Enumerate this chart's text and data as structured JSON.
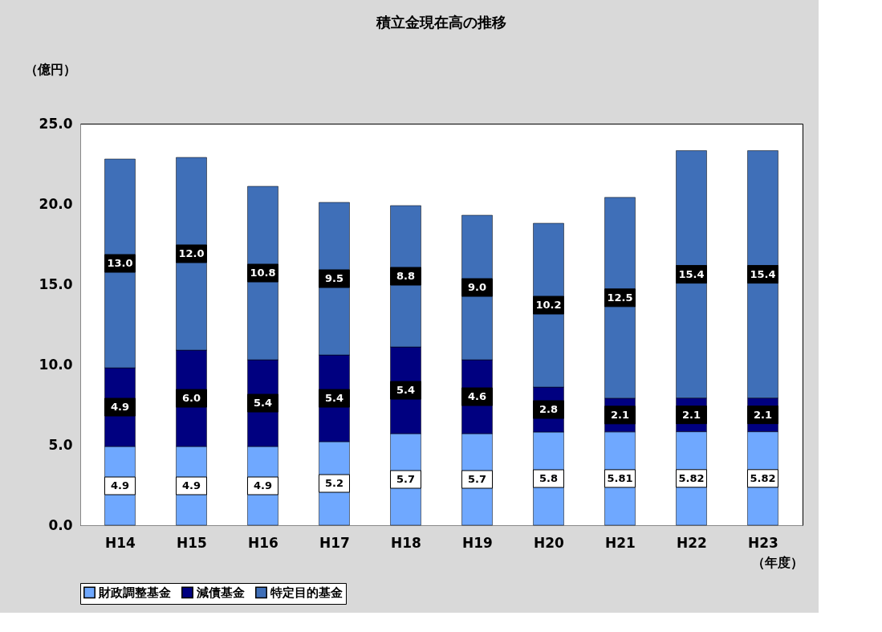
{
  "chart_data": {
    "type": "bar",
    "title": "積立金現在高の推移",
    "ylabel": "（億円）",
    "xlabel": "（年度）",
    "categories": [
      "H14",
      "H15",
      "H16",
      "H17",
      "H18",
      "H19",
      "H20",
      "H21",
      "H22",
      "H23"
    ],
    "stacked": true,
    "ylim": [
      0,
      25
    ],
    "yticks": [
      {
        "value": 0,
        "label": "0.0"
      },
      {
        "value": 5,
        "label": "5.0"
      },
      {
        "value": 10,
        "label": "10.0"
      },
      {
        "value": 15,
        "label": "15.0"
      },
      {
        "value": 20,
        "label": "20.0"
      },
      {
        "value": 25,
        "label": "25.0"
      }
    ],
    "grid": false,
    "legend": "bottom",
    "series": [
      {
        "name": "財政調整基金",
        "color": "#6fa8ff",
        "values": [
          4.9,
          4.9,
          4.9,
          5.2,
          5.7,
          5.7,
          5.8,
          5.81,
          5.82,
          5.82
        ],
        "value_labels": [
          "4.9",
          "4.9",
          "4.9",
          "5.2",
          "5.7",
          "5.7",
          "5.8",
          "5.81",
          "5.82",
          "5.82"
        ]
      },
      {
        "name": "減債基金",
        "color": "#000080",
        "values": [
          4.9,
          6.0,
          5.4,
          5.4,
          5.4,
          4.6,
          2.8,
          2.1,
          2.1,
          2.1
        ],
        "value_labels": [
          "4.9",
          "6.0",
          "5.4",
          "5.4",
          "5.4",
          "4.6",
          "2.8",
          "2.1",
          "2.1",
          "2.1"
        ]
      },
      {
        "name": "特定目的基金",
        "color": "#3f6fb8",
        "values": [
          13.0,
          12.0,
          10.8,
          9.5,
          8.8,
          9.0,
          10.2,
          12.5,
          15.4,
          15.4
        ],
        "value_labels": [
          "13.0",
          "12.0",
          "10.8",
          "9.5",
          "8.8",
          "9.0",
          "10.2",
          "12.5",
          "15.4",
          "15.4"
        ]
      }
    ]
  }
}
